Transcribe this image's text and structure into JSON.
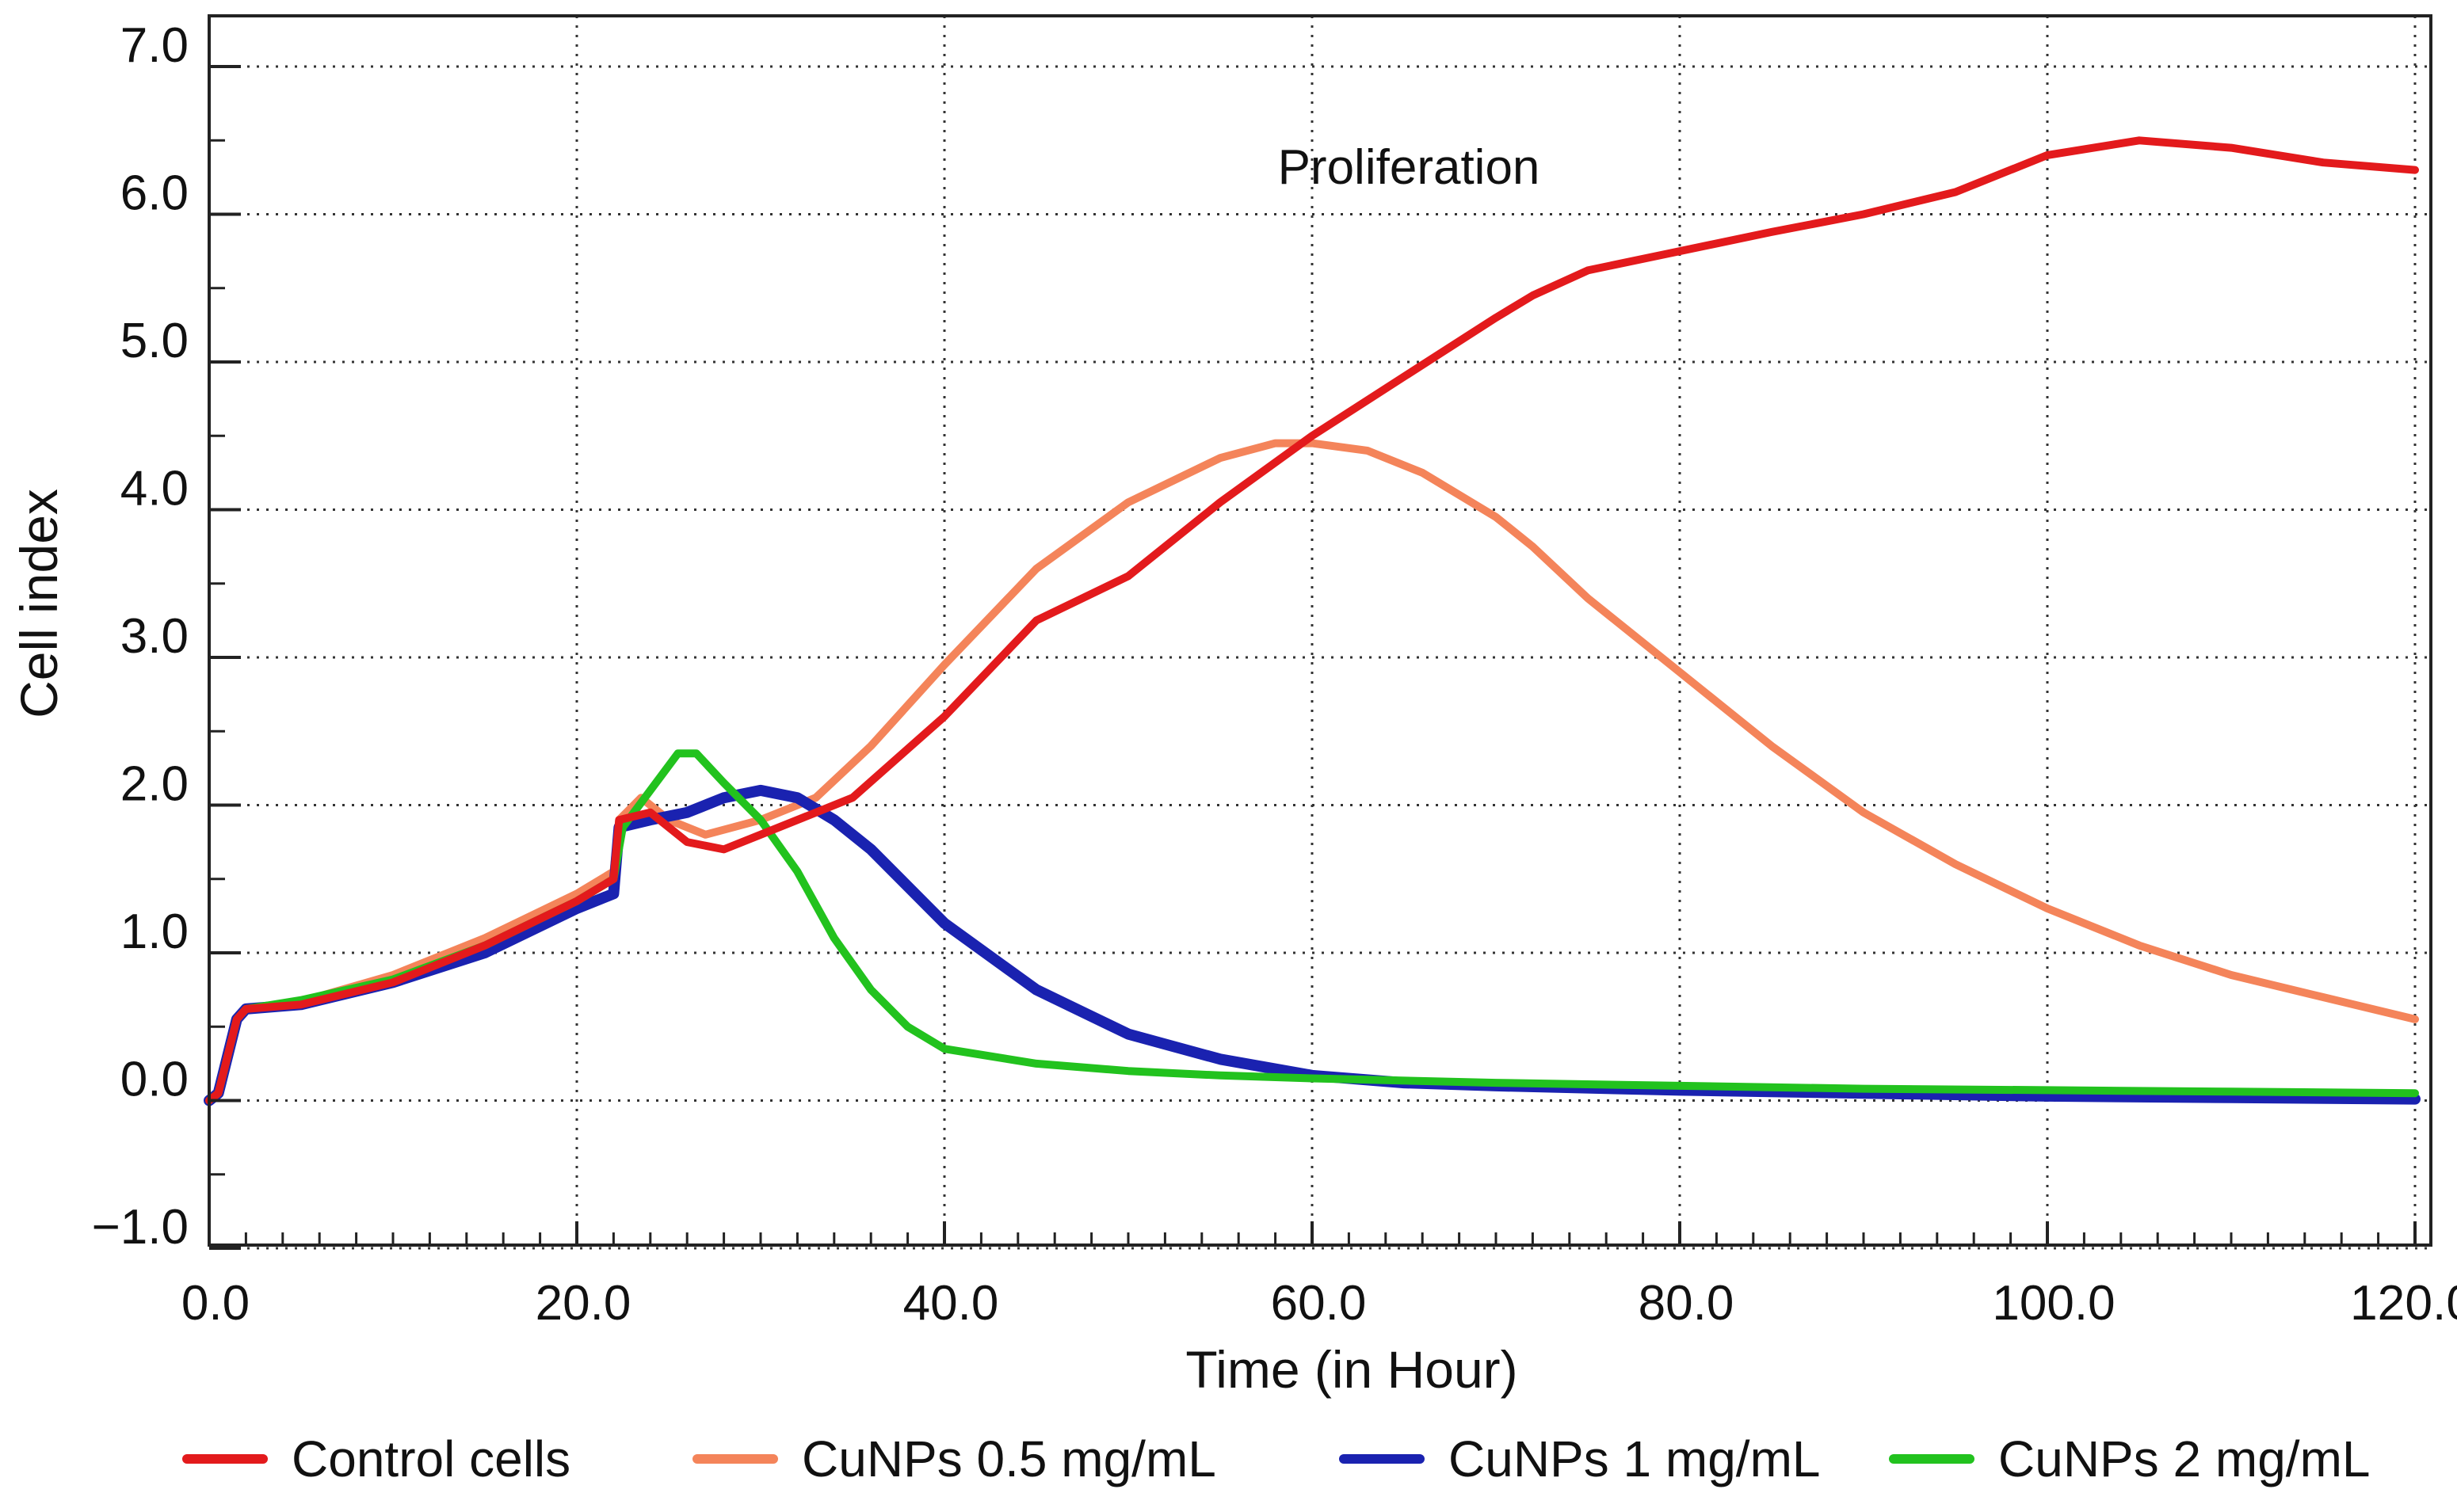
{
  "chart_data": {
    "type": "line",
    "title": "",
    "annotation": "Proliferation",
    "xlabel": "Time (in Hour)",
    "ylabel": "Cell index",
    "xlim": [
      0,
      120
    ],
    "ylim": [
      -1.0,
      7.0
    ],
    "x_ticks": [
      "0.0",
      "20.0",
      "40.0",
      "60.0",
      "80.0",
      "100.0",
      "120.0"
    ],
    "y_ticks": [
      "7.0",
      "6.0",
      "5.0",
      "4.0",
      "3.0",
      "2.0",
      "1.0",
      "0.0",
      "−1.0"
    ],
    "legend_position": "bottom",
    "series": [
      {
        "name": "Control cells",
        "color": "#e31a1c",
        "points": [
          [
            0,
            0
          ],
          [
            0.5,
            0.05
          ],
          [
            1.5,
            0.55
          ],
          [
            2,
            0.62
          ],
          [
            5,
            0.65
          ],
          [
            10,
            0.8
          ],
          [
            15,
            1.05
          ],
          [
            20,
            1.35
          ],
          [
            22,
            1.5
          ],
          [
            22.3,
            1.9
          ],
          [
            24,
            1.95
          ],
          [
            26,
            1.75
          ],
          [
            28,
            1.7
          ],
          [
            30,
            1.8
          ],
          [
            32,
            1.9
          ],
          [
            35,
            2.05
          ],
          [
            40,
            2.6
          ],
          [
            45,
            3.25
          ],
          [
            50,
            3.55
          ],
          [
            55,
            4.05
          ],
          [
            60,
            4.5
          ],
          [
            65,
            4.9
          ],
          [
            70,
            5.3
          ],
          [
            72,
            5.45
          ],
          [
            75,
            5.62
          ],
          [
            80,
            5.75
          ],
          [
            85,
            5.88
          ],
          [
            90,
            6.0
          ],
          [
            95,
            6.15
          ],
          [
            100,
            6.4
          ],
          [
            105,
            6.5
          ],
          [
            110,
            6.45
          ],
          [
            115,
            6.35
          ],
          [
            120,
            6.3
          ]
        ]
      },
      {
        "name": "CuNPs 0.5 mg/mL",
        "color": "#f4845a",
        "points": [
          [
            0,
            0
          ],
          [
            0.5,
            0.05
          ],
          [
            1.5,
            0.55
          ],
          [
            2,
            0.62
          ],
          [
            5,
            0.67
          ],
          [
            10,
            0.85
          ],
          [
            15,
            1.1
          ],
          [
            20,
            1.4
          ],
          [
            22,
            1.55
          ],
          [
            22.3,
            1.9
          ],
          [
            23.5,
            2.05
          ],
          [
            25,
            1.9
          ],
          [
            27,
            1.8
          ],
          [
            30,
            1.9
          ],
          [
            33,
            2.05
          ],
          [
            36,
            2.4
          ],
          [
            40,
            2.95
          ],
          [
            45,
            3.6
          ],
          [
            50,
            4.05
          ],
          [
            55,
            4.35
          ],
          [
            58,
            4.45
          ],
          [
            60,
            4.45
          ],
          [
            63,
            4.4
          ],
          [
            66,
            4.25
          ],
          [
            70,
            3.95
          ],
          [
            72,
            3.75
          ],
          [
            75,
            3.4
          ],
          [
            80,
            2.9
          ],
          [
            85,
            2.4
          ],
          [
            90,
            1.95
          ],
          [
            95,
            1.6
          ],
          [
            100,
            1.3
          ],
          [
            105,
            1.05
          ],
          [
            110,
            0.85
          ],
          [
            115,
            0.7
          ],
          [
            120,
            0.55
          ]
        ]
      },
      {
        "name": "CuNPs 1 mg/mL",
        "color": "#1a22b0",
        "points": [
          [
            0,
            0
          ],
          [
            0.5,
            0.05
          ],
          [
            1.5,
            0.55
          ],
          [
            2,
            0.62
          ],
          [
            5,
            0.65
          ],
          [
            10,
            0.8
          ],
          [
            15,
            1.0
          ],
          [
            20,
            1.3
          ],
          [
            22,
            1.4
          ],
          [
            22.3,
            1.85
          ],
          [
            24,
            1.9
          ],
          [
            26,
            1.95
          ],
          [
            28,
            2.05
          ],
          [
            30,
            2.1
          ],
          [
            32,
            2.05
          ],
          [
            34,
            1.9
          ],
          [
            36,
            1.7
          ],
          [
            38,
            1.45
          ],
          [
            40,
            1.2
          ],
          [
            45,
            0.75
          ],
          [
            50,
            0.45
          ],
          [
            55,
            0.28
          ],
          [
            60,
            0.17
          ],
          [
            65,
            0.12
          ],
          [
            70,
            0.1
          ],
          [
            80,
            0.07
          ],
          [
            90,
            0.05
          ],
          [
            100,
            0.03
          ],
          [
            110,
            0.02
          ],
          [
            120,
            0.01
          ]
        ]
      },
      {
        "name": "CuNPs 2 mg/mL",
        "color": "#22c21e",
        "points": [
          [
            0,
            0
          ],
          [
            0.5,
            0.05
          ],
          [
            1.5,
            0.55
          ],
          [
            2,
            0.62
          ],
          [
            5,
            0.68
          ],
          [
            10,
            0.82
          ],
          [
            15,
            1.05
          ],
          [
            20,
            1.35
          ],
          [
            22,
            1.5
          ],
          [
            22.5,
            1.85
          ],
          [
            24,
            2.1
          ],
          [
            25.5,
            2.35
          ],
          [
            26.5,
            2.35
          ],
          [
            28,
            2.15
          ],
          [
            30,
            1.9
          ],
          [
            32,
            1.55
          ],
          [
            34,
            1.1
          ],
          [
            36,
            0.75
          ],
          [
            38,
            0.5
          ],
          [
            40,
            0.35
          ],
          [
            45,
            0.25
          ],
          [
            50,
            0.2
          ],
          [
            55,
            0.17
          ],
          [
            60,
            0.15
          ],
          [
            70,
            0.12
          ],
          [
            80,
            0.1
          ],
          [
            90,
            0.08
          ],
          [
            100,
            0.07
          ],
          [
            110,
            0.06
          ],
          [
            120,
            0.05
          ]
        ]
      }
    ]
  }
}
